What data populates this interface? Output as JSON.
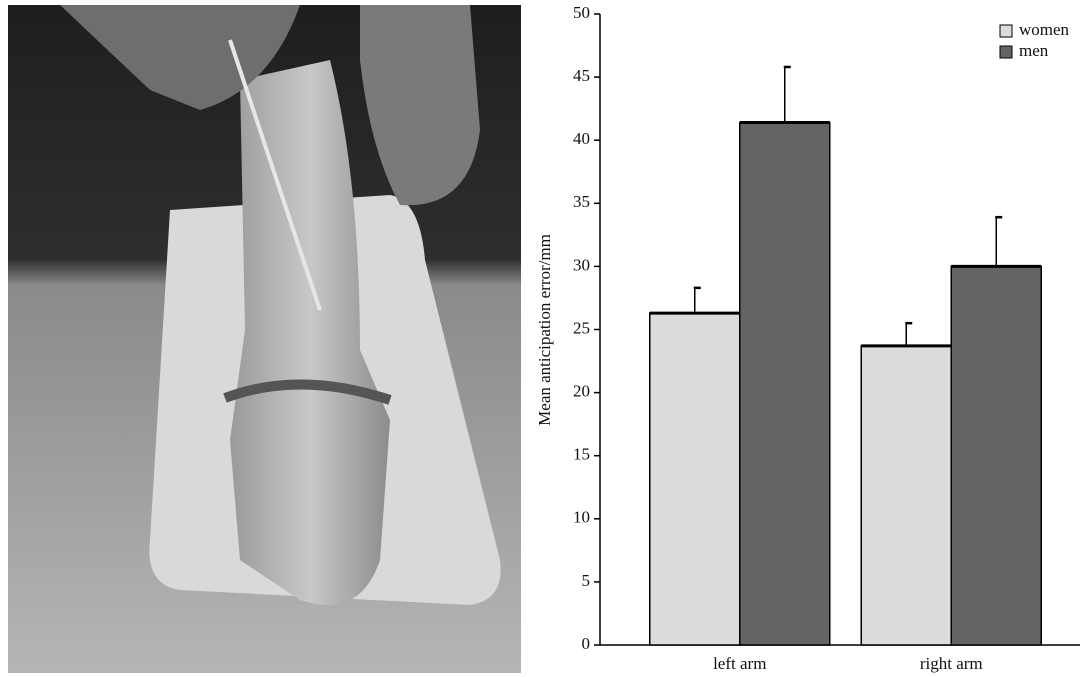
{
  "chart_data": {
    "type": "bar",
    "ylabel": "Mean anticipation error/mm",
    "categories": [
      "left arm",
      "right arm"
    ],
    "series": [
      {
        "name": "women",
        "color": "#dcdcdc",
        "values": [
          26.3,
          23.7
        ],
        "errors": [
          2.0,
          1.8
        ]
      },
      {
        "name": "men",
        "color": "#646464",
        "values": [
          41.4,
          30.0
        ],
        "errors": [
          4.4,
          3.9
        ]
      }
    ],
    "ylim": [
      0,
      50
    ],
    "yticks": [
      0,
      5,
      10,
      15,
      20,
      25,
      30,
      35,
      40,
      45,
      50
    ],
    "legend": "upper-right",
    "grid": false
  }
}
